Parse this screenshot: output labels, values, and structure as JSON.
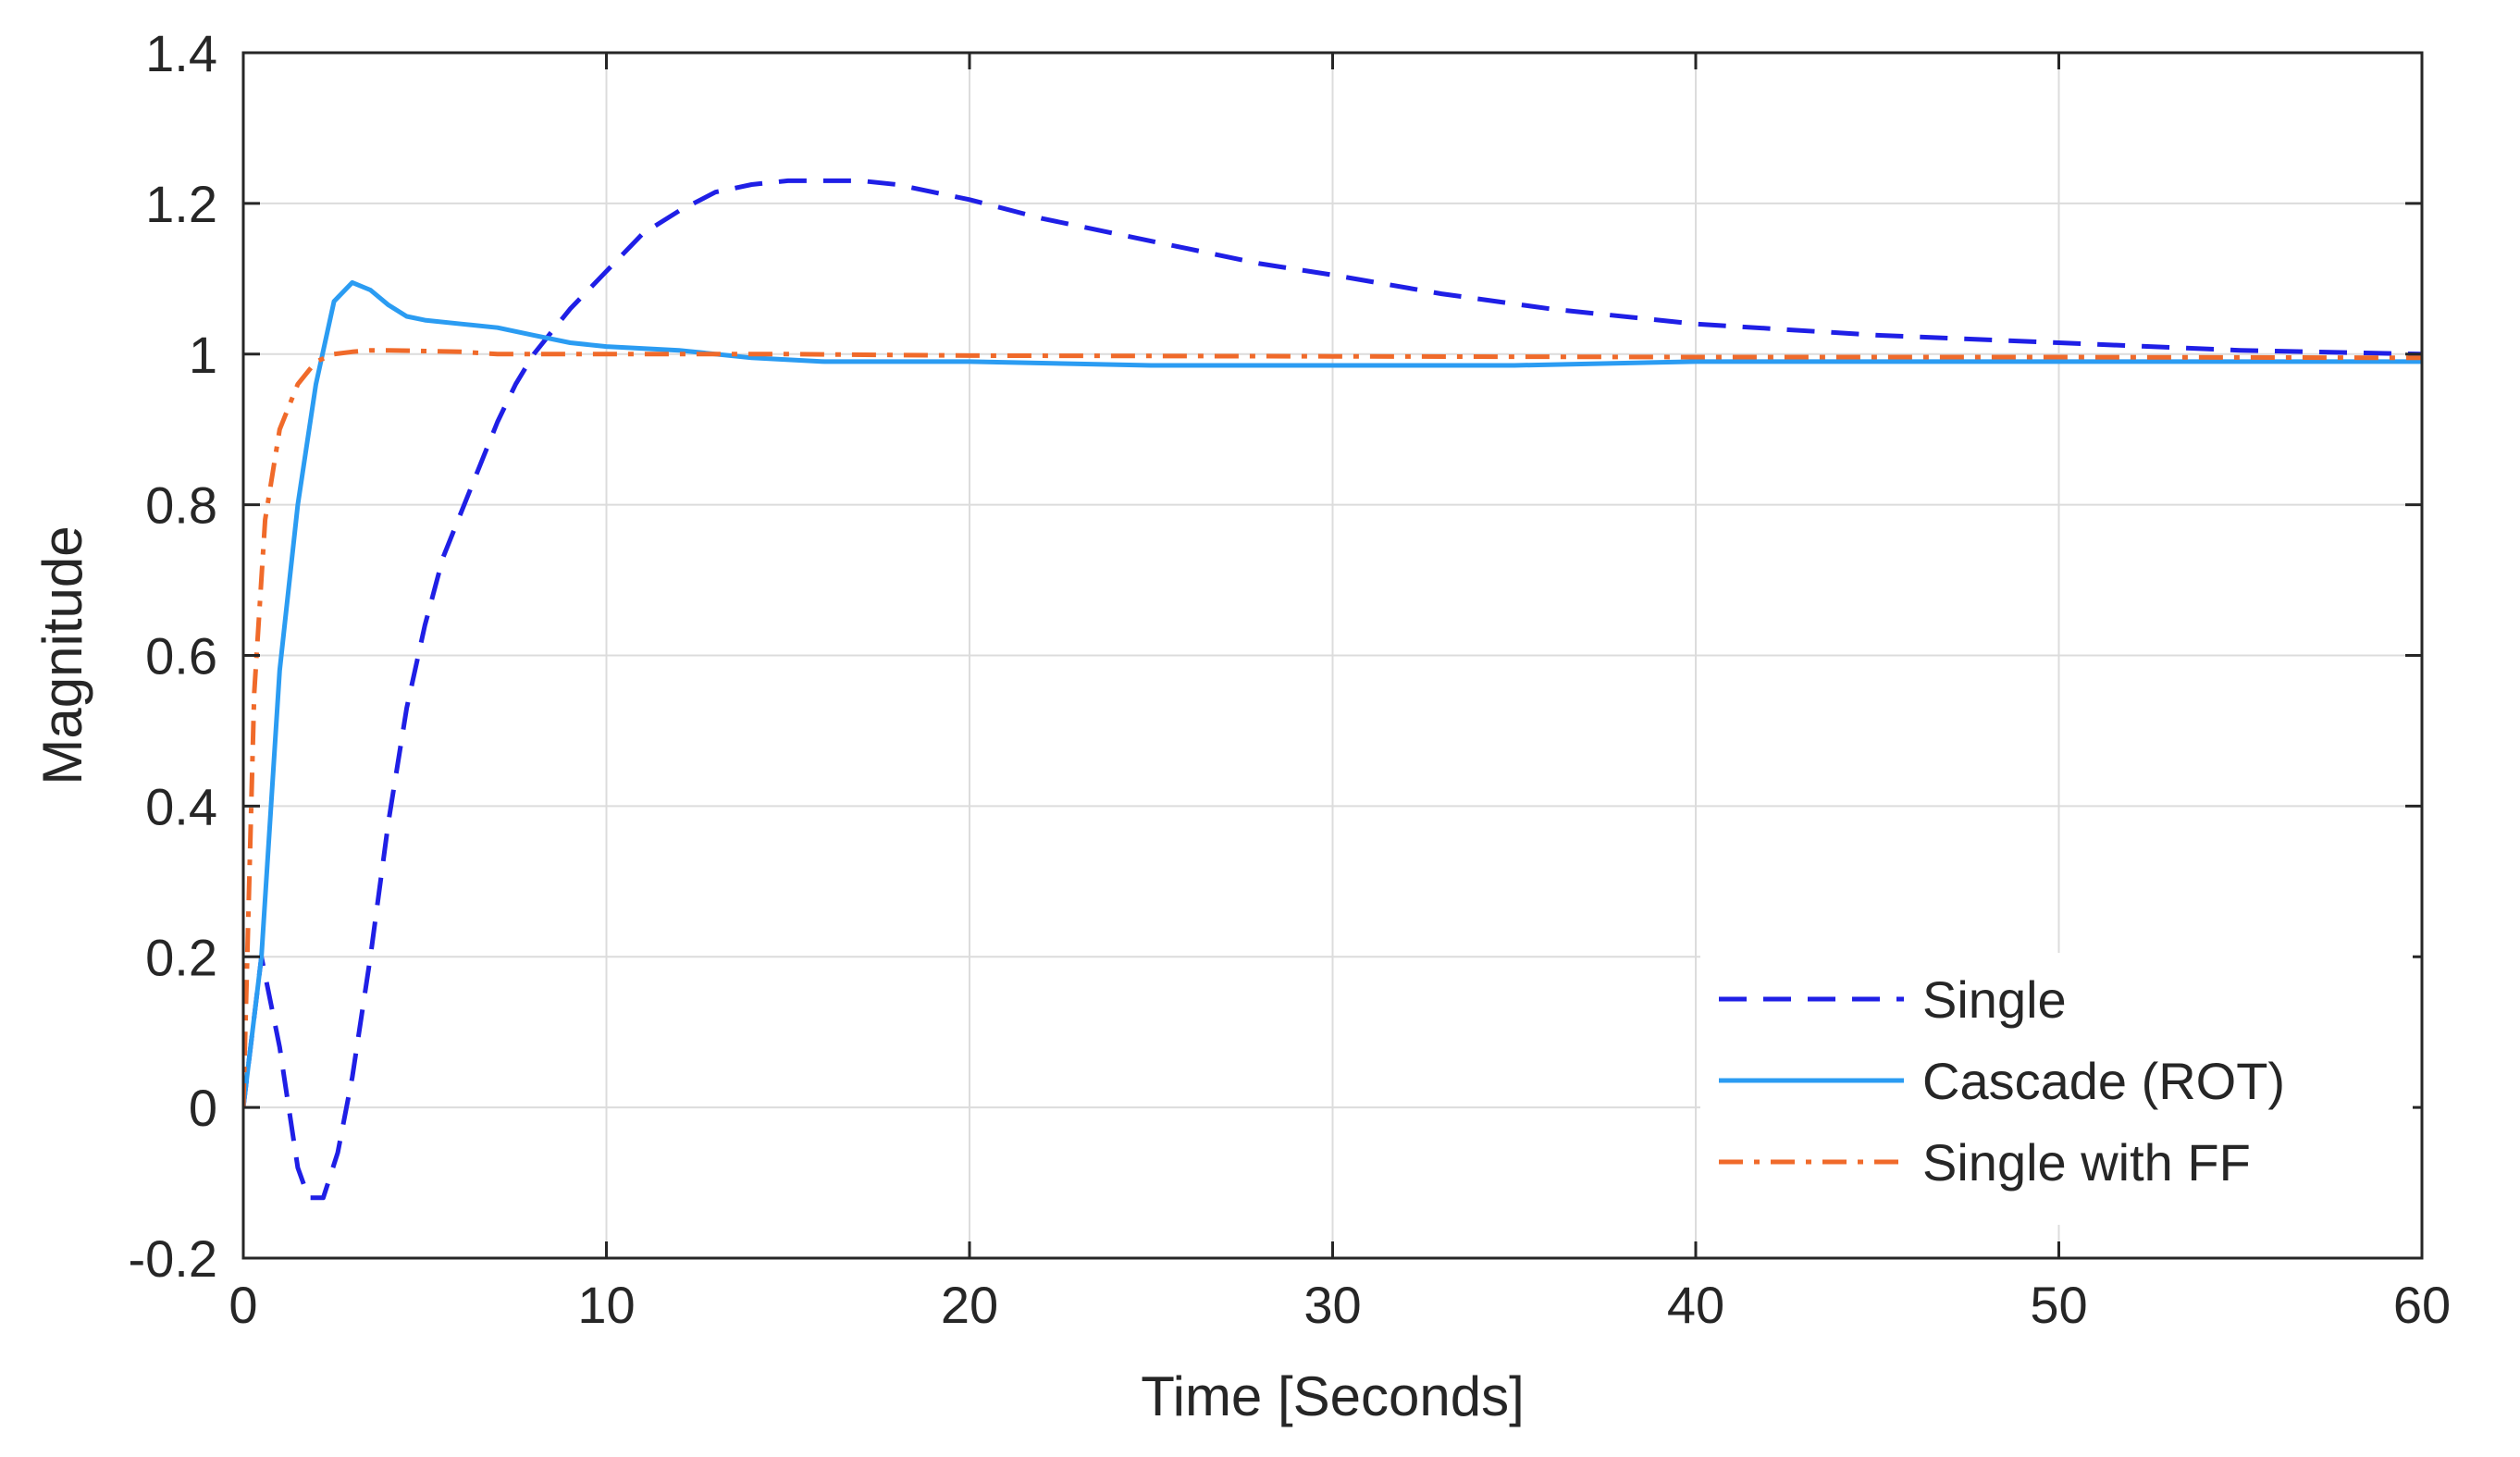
{
  "chart_data": {
    "type": "line",
    "title": "",
    "xlabel": "Time [Seconds]",
    "ylabel": "Magnitude",
    "xlim": [
      0,
      60
    ],
    "ylim": [
      -0.2,
      1.4
    ],
    "xticks": [
      0,
      10,
      20,
      30,
      40,
      50,
      60
    ],
    "yticks": [
      -0.2,
      0,
      0.2,
      0.4,
      0.6,
      0.8,
      1,
      1.2,
      1.4
    ],
    "xtick_labels": [
      "0",
      "10",
      "20",
      "30",
      "40",
      "50",
      "60"
    ],
    "ytick_labels": [
      "-0.2",
      "0",
      "0.2",
      "0.4",
      "0.6",
      "0.8",
      "1",
      "1.2",
      "1.4"
    ],
    "grid": true,
    "legend": "bottom-right",
    "series": [
      {
        "name": "Single",
        "color": "#1f1fe6",
        "dash": "dashed",
        "x": [
          0,
          0.5,
          1,
          1.5,
          1.8,
          2.2,
          2.6,
          3,
          3.5,
          4,
          4.5,
          5,
          5.5,
          6,
          6.5,
          7,
          7.5,
          8,
          8.5,
          9,
          10,
          11,
          12,
          13,
          14,
          15,
          16,
          17,
          18,
          19,
          20,
          22,
          24,
          26,
          28,
          30,
          33,
          36,
          40,
          45,
          50,
          55,
          60
        ],
        "y": [
          0,
          0.2,
          0.08,
          -0.08,
          -0.12,
          -0.12,
          -0.06,
          0.04,
          0.2,
          0.38,
          0.53,
          0.64,
          0.73,
          0.79,
          0.85,
          0.91,
          0.96,
          1.0,
          1.03,
          1.06,
          1.11,
          1.16,
          1.19,
          1.215,
          1.225,
          1.23,
          1.23,
          1.23,
          1.225,
          1.215,
          1.205,
          1.18,
          1.16,
          1.14,
          1.12,
          1.105,
          1.08,
          1.06,
          1.04,
          1.025,
          1.015,
          1.005,
          1.0
        ]
      },
      {
        "name": "Cascade (ROT)",
        "color": "#2b9cf2",
        "dash": "solid",
        "x": [
          0,
          0.5,
          1,
          1.5,
          2,
          2.5,
          3,
          3.5,
          4,
          4.5,
          5,
          6,
          7,
          8,
          9,
          10,
          12,
          14,
          16,
          18,
          20,
          25,
          30,
          35,
          40,
          45,
          50,
          55,
          60
        ],
        "y": [
          0,
          0.2,
          0.58,
          0.8,
          0.96,
          1.07,
          1.095,
          1.085,
          1.065,
          1.05,
          1.045,
          1.04,
          1.035,
          1.025,
          1.015,
          1.01,
          1.005,
          0.995,
          0.99,
          0.99,
          0.99,
          0.985,
          0.985,
          0.985,
          0.99,
          0.99,
          0.99,
          0.99,
          0.99
        ]
      },
      {
        "name": "Single with FF",
        "color": "#f06a2a",
        "dash": "dashdot",
        "x": [
          0,
          0.3,
          0.6,
          1,
          1.5,
          2,
          2.5,
          3,
          3.5,
          4,
          5,
          6,
          7,
          8,
          10,
          12,
          15,
          20,
          30,
          40,
          50,
          60
        ],
        "y": [
          0,
          0.55,
          0.78,
          0.9,
          0.96,
          0.99,
          1.0,
          1.003,
          1.005,
          1.005,
          1.004,
          1.003,
          1.0,
          1.0,
          1.0,
          1.0,
          1.0,
          0.998,
          0.997,
          0.996,
          0.996,
          0.995
        ]
      }
    ]
  }
}
